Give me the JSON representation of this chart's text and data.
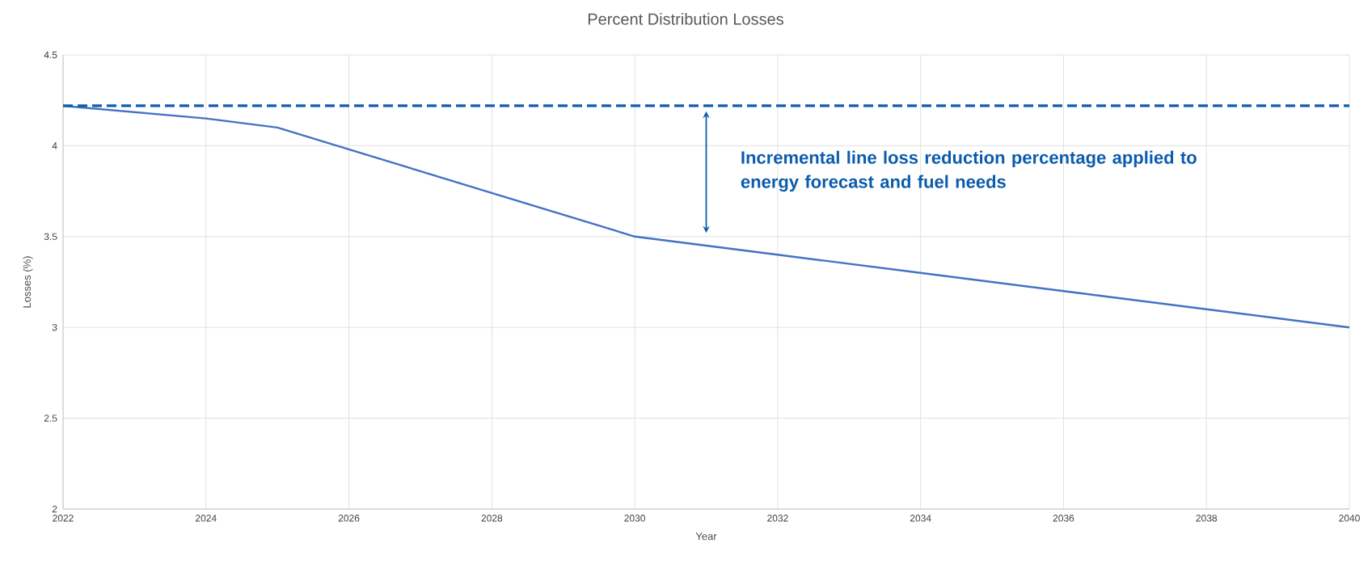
{
  "chart_data": {
    "type": "line",
    "title": "Percent Distribution Losses",
    "xlabel": "Year",
    "ylabel": "Losses (%)",
    "x": [
      2022,
      2024,
      2025,
      2026,
      2028,
      2030,
      2031,
      2032,
      2034,
      2036,
      2038,
      2040
    ],
    "series": [
      {
        "color": "#4472c4",
        "values": [
          4.22,
          4.15,
          4.1,
          3.98,
          3.74,
          3.5,
          3.45,
          3.4,
          3.3,
          3.2,
          3.1,
          3.0
        ]
      }
    ],
    "xlim": [
      2022,
      2040
    ],
    "xticks": [
      2022,
      2024,
      2026,
      2028,
      2030,
      2032,
      2034,
      2036,
      2038,
      2040
    ],
    "ylim": [
      2,
      4.5
    ],
    "yticks": [
      2,
      2.5,
      3,
      3.5,
      4,
      4.5
    ],
    "ref_lines": [
      {
        "axis": "y",
        "value": 4.22,
        "color": "#0b5cad",
        "line_style": "dashed"
      }
    ],
    "annotations": [
      "Incremental line loss reduction percentage applied to energy forecast and fuel needs"
    ],
    "grid": true,
    "marker": "none",
    "line_style": "solid"
  }
}
